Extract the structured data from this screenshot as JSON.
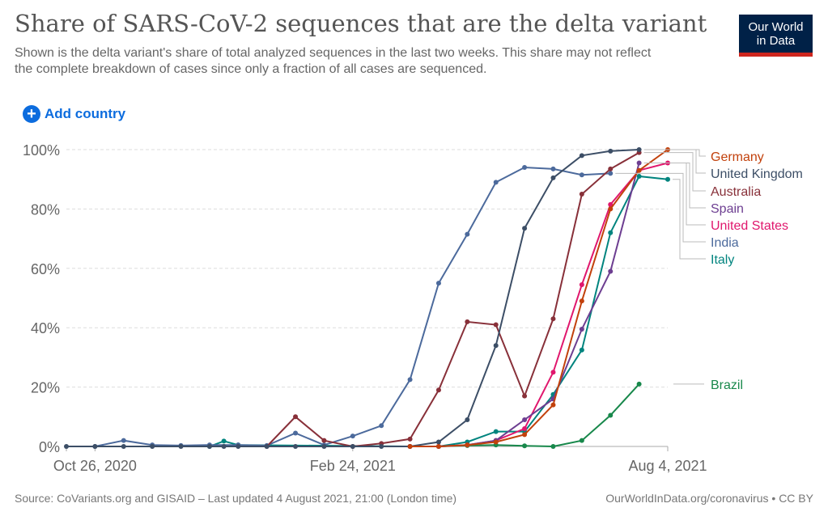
{
  "header": {
    "title": "Share of SARS-CoV-2 sequences that are the delta variant",
    "subtitle": "Shown is the delta variant's share of total analyzed sequences in the last two weeks. This share may not reflect the complete breakdown of cases since only a fraction of all cases are sequenced.",
    "logo_line1": "Our World",
    "logo_line2": "in Data"
  },
  "controls": {
    "add_country_label": "Add country",
    "add_country_icon": "plus-circle-icon"
  },
  "footer": {
    "source": "Source: CoVariants.org and GISAID – Last updated 4 August 2021, 21:00 (London time)",
    "license": "OurWorldInData.org/coronavirus • CC BY"
  },
  "colors": {
    "accent": "#0c6cde",
    "logo_bg": "#002147",
    "logo_bar": "#ce261e",
    "grid": "#dddddd",
    "axis_text": "#666666"
  },
  "chart_data": {
    "type": "line",
    "title": "Share of SARS-CoV-2 sequences that are the delta variant",
    "xlabel": "",
    "ylabel": "",
    "ylim": [
      0,
      100
    ],
    "yticks": [
      0,
      20,
      40,
      60,
      80,
      100
    ],
    "ytick_labels": [
      "0%",
      "20%",
      "40%",
      "60%",
      "80%",
      "100%"
    ],
    "x_start": "Oct 12, 2020",
    "x_step_days": 14,
    "xticks": [
      {
        "index": 1,
        "label": "Oct 26, 2020"
      },
      {
        "index": 10,
        "label": "Feb 24, 2021"
      },
      {
        "index": 21,
        "label": "Aug 4, 2021"
      }
    ],
    "x_range_index": [
      0,
      21
    ],
    "grid": true,
    "legend": "right-end-labels",
    "series": [
      {
        "name": "Germany",
        "color": "#c2410c",
        "points": [
          [
            12,
            0
          ],
          [
            13,
            0
          ],
          [
            14,
            0.5
          ],
          [
            15,
            1.5
          ],
          [
            16,
            4
          ],
          [
            17,
            14
          ],
          [
            18,
            49
          ],
          [
            19,
            80
          ],
          [
            20,
            93
          ],
          [
            21,
            100
          ]
        ]
      },
      {
        "name": "United Kingdom",
        "color": "#3c4e66",
        "points": [
          [
            0,
            0
          ],
          [
            1,
            0
          ],
          [
            2,
            0
          ],
          [
            3,
            0
          ],
          [
            4,
            0
          ],
          [
            5,
            0
          ],
          [
            5.5,
            0
          ],
          [
            6,
            0
          ],
          [
            7,
            0
          ],
          [
            8,
            0
          ],
          [
            9,
            0
          ],
          [
            10,
            0
          ],
          [
            11,
            0
          ],
          [
            12,
            0
          ],
          [
            13,
            1.5
          ],
          [
            14,
            9
          ],
          [
            15,
            34
          ],
          [
            16,
            73.5
          ],
          [
            17,
            90.5
          ],
          [
            18,
            98
          ],
          [
            19,
            99.5
          ],
          [
            20,
            100
          ]
        ]
      },
      {
        "name": "Australia",
        "color": "#883039",
        "points": [
          [
            7,
            0
          ],
          [
            8,
            10
          ],
          [
            9,
            2
          ],
          [
            10,
            0
          ],
          [
            11,
            1
          ],
          [
            12,
            2.5
          ],
          [
            13,
            19
          ],
          [
            14,
            42
          ],
          [
            15,
            41
          ],
          [
            16,
            17
          ],
          [
            17,
            43
          ],
          [
            18,
            85
          ],
          [
            19,
            93.5
          ],
          [
            20,
            99
          ]
        ]
      },
      {
        "name": "Spain",
        "color": "#6d3e91",
        "points": [
          [
            12,
            0
          ],
          [
            13,
            0
          ],
          [
            14,
            0.5
          ],
          [
            15,
            2
          ],
          [
            16,
            9
          ],
          [
            17,
            16
          ],
          [
            18,
            39.5
          ],
          [
            19,
            59
          ],
          [
            20,
            95.5
          ]
        ]
      },
      {
        "name": "United States",
        "color": "#e0176d",
        "points": [
          [
            12,
            0
          ],
          [
            13,
            0
          ],
          [
            14,
            0.5
          ],
          [
            15,
            2
          ],
          [
            16,
            6
          ],
          [
            17,
            25
          ],
          [
            18,
            54.5
          ],
          [
            19,
            81.5
          ],
          [
            20,
            93
          ],
          [
            21,
            95.5
          ]
        ]
      },
      {
        "name": "India",
        "color": "#4c6a9c",
        "points": [
          [
            1,
            0
          ],
          [
            2,
            2
          ],
          [
            3,
            0.5
          ],
          [
            4,
            0.3
          ],
          [
            5,
            0.5
          ],
          [
            6,
            0.5
          ],
          [
            7,
            0.3
          ],
          [
            8,
            4.5
          ],
          [
            9,
            0.5
          ],
          [
            10,
            3.5
          ],
          [
            11,
            7
          ],
          [
            12,
            22.5
          ],
          [
            13,
            55
          ],
          [
            14,
            71.5
          ],
          [
            15,
            89
          ],
          [
            16,
            94
          ],
          [
            17,
            93.5
          ],
          [
            18,
            91.5
          ],
          [
            19,
            92
          ]
        ]
      },
      {
        "name": "Italy",
        "color": "#00847e",
        "points": [
          [
            5,
            0
          ],
          [
            5.5,
            1.8
          ],
          [
            6,
            0.5
          ],
          [
            12,
            0
          ],
          [
            13,
            0
          ],
          [
            14,
            1.5
          ],
          [
            15,
            5
          ],
          [
            16,
            5
          ],
          [
            17,
            17.5
          ],
          [
            18,
            32.5
          ],
          [
            19,
            72
          ],
          [
            20,
            91
          ],
          [
            21,
            90
          ]
        ]
      },
      {
        "name": "Brazil",
        "color": "#18884b",
        "points": [
          [
            13,
            0
          ],
          [
            14,
            0.3
          ],
          [
            15,
            0.5
          ],
          [
            16,
            0.2
          ],
          [
            17,
            0
          ],
          [
            18,
            2
          ],
          [
            19,
            10.5
          ],
          [
            20,
            21
          ]
        ]
      }
    ],
    "end_labels": [
      {
        "name": "Germany",
        "value_row": 0
      },
      {
        "name": "United Kingdom",
        "value_row": 1
      },
      {
        "name": "Australia",
        "value_row": 2
      },
      {
        "name": "Spain",
        "value_row": 3
      },
      {
        "name": "United States",
        "value_row": 4
      },
      {
        "name": "India",
        "value_row": 5
      },
      {
        "name": "Italy",
        "value_row": 6
      },
      {
        "name": "Brazil",
        "value_row": 7
      }
    ]
  }
}
